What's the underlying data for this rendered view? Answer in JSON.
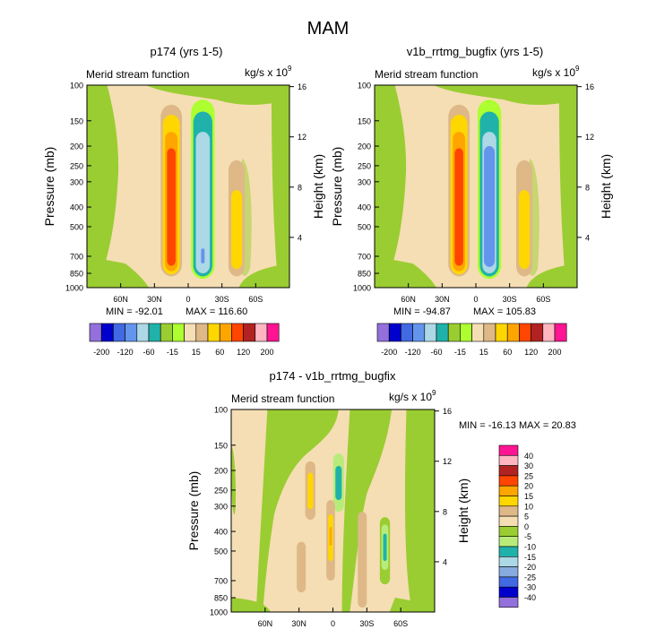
{
  "figure": {
    "title": "MAM"
  },
  "colors": {
    "levels_main": [
      "#9370db",
      "#0000cd",
      "#4169e1",
      "#6495ed",
      "#add8e6",
      "#20b2aa",
      "#9acd32",
      "#adff2f",
      "#f5deb3",
      "#deb887",
      "#ffd700",
      "#ffa500",
      "#ff4500",
      "#b22222",
      "#ffb6c1",
      "#ff1493"
    ],
    "levels_diff": [
      "#9370db",
      "#0000cd",
      "#4169e1",
      "#87aadf",
      "#add8e6",
      "#20b2aa",
      "#b8ec7a",
      "#9acd32",
      "#f5deb3",
      "#deb887",
      "#ffd700",
      "#ffa500",
      "#ff4500",
      "#b22222",
      "#ffb6c1",
      "#ff1493"
    ]
  },
  "chart_data": [
    {
      "type": "contour",
      "panel": "top-left",
      "title": "p174 (yrs 1-5)",
      "left_title": "Merid stream function",
      "units_text": "kg/s x 10",
      "units_exp": "9",
      "ylabel": "Pressure (mb)",
      "ylabel_right": "Height (km)",
      "xticks": [
        "60N",
        "30N",
        "0",
        "30S",
        "60S"
      ],
      "xtick_lat": [
        60,
        30,
        0,
        -30,
        -60
      ],
      "x_range": [
        90,
        -90
      ],
      "yticks": [
        "100",
        "150",
        "200",
        "250",
        "300",
        "400",
        "500",
        "700",
        "850",
        "1000"
      ],
      "ytick_p": [
        100,
        150,
        200,
        250,
        300,
        400,
        500,
        700,
        850,
        1000
      ],
      "y_range": [
        100,
        1000
      ],
      "yticks_right": [
        "16",
        "12",
        "8",
        "4"
      ],
      "ytick_right_km": [
        16,
        12,
        8,
        4
      ],
      "min_label": "MIN = -92.01",
      "max_label": "MAX = 116.60",
      "cells": [
        {
          "lat_min": 85,
          "lat_max": 90,
          "p_min": 100,
          "p_max": 120,
          "level": 7
        },
        {
          "lat_min": 55,
          "lat_max": 90,
          "p_min": 120,
          "p_max": 140,
          "level": 7
        }
      ]
    },
    {
      "type": "contour",
      "panel": "top-right",
      "title": "v1b_rrtmg_bugfix (yrs 1-5)",
      "left_title": "Merid stream function",
      "units_text": "kg/s x 10",
      "units_exp": "9",
      "ylabel": "Pressure (mb)",
      "ylabel_right": "Height (km)",
      "xticks": [
        "60N",
        "30N",
        "0",
        "30S",
        "60S"
      ],
      "xtick_lat": [
        60,
        30,
        0,
        -30,
        -60
      ],
      "x_range": [
        90,
        -90
      ],
      "yticks": [
        "100",
        "150",
        "200",
        "250",
        "300",
        "400",
        "500",
        "700",
        "850",
        "1000"
      ],
      "ytick_p": [
        100,
        150,
        200,
        250,
        300,
        400,
        500,
        700,
        850,
        1000
      ],
      "y_range": [
        100,
        1000
      ],
      "yticks_right": [
        "16",
        "12",
        "8",
        "4"
      ],
      "ytick_right_km": [
        16,
        12,
        8,
        4
      ],
      "min_label": "MIN = -94.87",
      "max_label": "MAX = 105.83"
    },
    {
      "type": "contour",
      "panel": "bottom",
      "title": "p174 - v1b_rrtmg_bugfix",
      "left_title": "Merid stream function",
      "units_text": "kg/s x 10",
      "units_exp": "9",
      "ylabel": "Pressure (mb)",
      "ylabel_right": "Height (km)",
      "xticks": [
        "60N",
        "30N",
        "0",
        "30S",
        "60S"
      ],
      "xtick_lat": [
        60,
        30,
        0,
        -30,
        -60
      ],
      "x_range": [
        90,
        -90
      ],
      "yticks": [
        "100",
        "150",
        "200",
        "250",
        "300",
        "400",
        "500",
        "700",
        "850",
        "1000"
      ],
      "ytick_p": [
        100,
        150,
        200,
        250,
        300,
        400,
        500,
        700,
        850,
        1000
      ],
      "y_range": [
        100,
        1000
      ],
      "yticks_right": [
        "16",
        "12",
        "8",
        "4"
      ],
      "ytick_right_km": [
        16,
        12,
        8,
        4
      ],
      "minmax_label": "MIN = -16.13  MAX =  20.83"
    }
  ],
  "colorbars": {
    "horizontal": {
      "labels": [
        "-200",
        "-120",
        "-60",
        "-15",
        "15",
        "60",
        "120",
        "200"
      ],
      "label_index": [
        1,
        3,
        5,
        7,
        9,
        11,
        13,
        15
      ]
    },
    "vertical": {
      "labels": [
        "40",
        "30",
        "25",
        "20",
        "15",
        "10",
        "5",
        "0",
        "-5",
        "-10",
        "-15",
        "-20",
        "-25",
        "-30",
        "-40"
      ]
    }
  }
}
